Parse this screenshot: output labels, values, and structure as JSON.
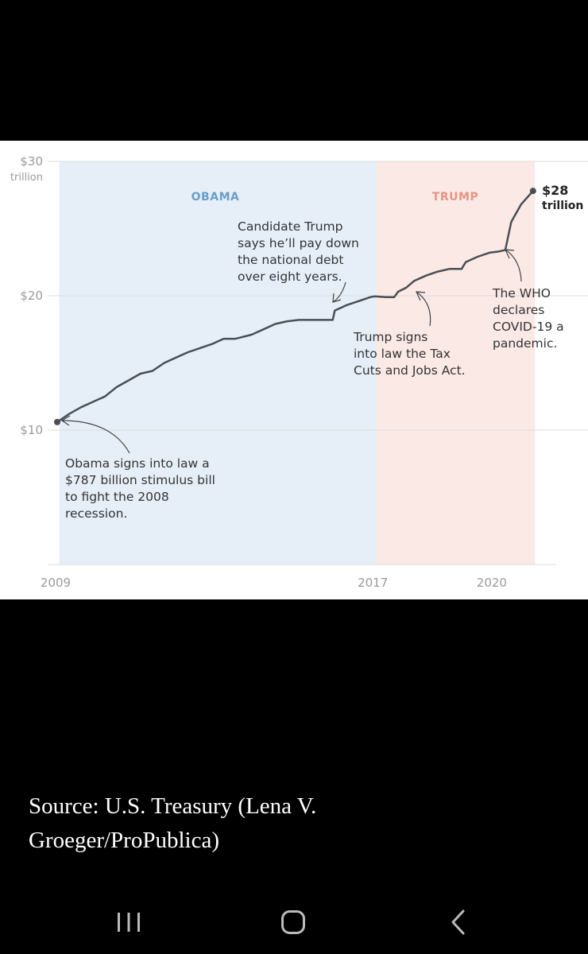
{
  "chart_data": {
    "type": "line",
    "source": "Source: U.S. Treasury (Lena V. Groeger/ProPublica)",
    "y_unit_label": "trillion",
    "ylim": [
      0,
      30
    ],
    "xlim": [
      2009,
      2021.4
    ],
    "y_ticks": [
      {
        "value": 30,
        "label": "$30"
      },
      {
        "value": 20,
        "label": "$20"
      },
      {
        "value": 10,
        "label": "$10"
      }
    ],
    "x_ticks": [
      {
        "value": 2009,
        "label": "2009"
      },
      {
        "value": 2017,
        "label": "2017"
      },
      {
        "value": 2020,
        "label": "2020"
      }
    ],
    "grid": "horizontal",
    "periods": [
      {
        "name": "OBAMA",
        "start": 2009.05,
        "end": 2017.05,
        "color": "#e6eff8",
        "label_color": "#6a9fc9"
      },
      {
        "name": "TRUMP",
        "start": 2017.05,
        "end": 2021.05,
        "color": "#fbe9e6",
        "label_color": "#e59483"
      }
    ],
    "series": [
      {
        "color": "#4a4f55",
        "x": [
          2009.0,
          2009.3,
          2009.6,
          2009.9,
          2010.2,
          2010.5,
          2010.8,
          2011.1,
          2011.4,
          2011.7,
          2012.0,
          2012.3,
          2012.6,
          2012.9,
          2013.2,
          2013.5,
          2013.9,
          2014.2,
          2014.5,
          2014.8,
          2015.1,
          2015.4,
          2015.7,
          2015.95,
          2016.0,
          2016.3,
          2016.6,
          2016.9,
          2017.0,
          2017.3,
          2017.5,
          2017.6,
          2017.8,
          2018.0,
          2018.3,
          2018.6,
          2018.9,
          2019.2,
          2019.3,
          2019.6,
          2019.9,
          2020.15,
          2020.3,
          2020.45,
          2020.7,
          2021.0
        ],
        "values": [
          10.6,
          11.2,
          11.7,
          12.1,
          12.5,
          13.2,
          13.7,
          14.2,
          14.4,
          15.0,
          15.4,
          15.8,
          16.1,
          16.4,
          16.8,
          16.8,
          17.1,
          17.5,
          17.9,
          18.1,
          18.2,
          18.2,
          18.2,
          18.2,
          18.9,
          19.3,
          19.6,
          19.9,
          19.95,
          19.9,
          19.9,
          20.3,
          20.6,
          21.1,
          21.5,
          21.8,
          22.0,
          22.0,
          22.5,
          22.9,
          23.2,
          23.3,
          23.4,
          25.5,
          26.8,
          27.8
        ]
      }
    ],
    "start_point": {
      "x": 2009.0,
      "value": 10.6
    },
    "end_point": {
      "x": 2021.0,
      "value": 27.8,
      "label_line1": "$28",
      "label_line2": "trillion"
    },
    "annotations": [
      {
        "lines": [
          "Obama signs into law a",
          "$787 billion stimulus bill",
          "to fight the 2008",
          "recession."
        ]
      },
      {
        "lines": [
          "Candidate Trump",
          "says he’ll pay down",
          "the national debt",
          "over eight years."
        ]
      },
      {
        "lines": [
          "Trump signs",
          "into law the Tax",
          "Cuts and Jobs Act."
        ]
      },
      {
        "lines": [
          "The WHO",
          "declares",
          "COVID-19 a",
          "pandemic."
        ]
      }
    ]
  },
  "caption": {
    "line1": "Source: U.S. Treasury (Lena V.",
    "line2": "Groeger/ProPublica)"
  },
  "navbar": {
    "buttons": [
      {
        "icon": "recent-apps-icon"
      },
      {
        "icon": "home-icon"
      },
      {
        "icon": "back-icon"
      }
    ]
  }
}
